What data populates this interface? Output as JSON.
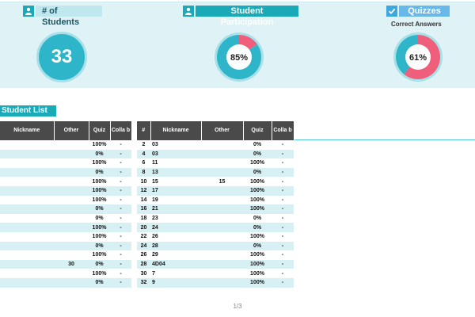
{
  "stats": {
    "students": {
      "title": "# of Students",
      "value": "33",
      "icon": "user-icon"
    },
    "participation": {
      "title": "Student Participation",
      "value": "85%",
      "percent": 85,
      "icon": "user-icon"
    },
    "quizzes": {
      "title": "Quizzes",
      "subtitle": "Correct Answers",
      "value": "61%",
      "percent": 61,
      "icon": "check-icon"
    }
  },
  "colors": {
    "teal": "#2fb5c9",
    "pink": "#ef5f7c",
    "ring": "#a8e0e8"
  },
  "section_title": "Student List",
  "left_table": {
    "headers": [
      "Nickname",
      "Other",
      "Quiz",
      "Colla b"
    ],
    "rows": [
      [
        "",
        "",
        "100%",
        "-"
      ],
      [
        "",
        "",
        "0%",
        "-"
      ],
      [
        "",
        "",
        "100%",
        "-"
      ],
      [
        "",
        "",
        "0%",
        "-"
      ],
      [
        "",
        "",
        "100%",
        "-"
      ],
      [
        "",
        "",
        "100%",
        "-"
      ],
      [
        "",
        "",
        "100%",
        "-"
      ],
      [
        "",
        "",
        "0%",
        "-"
      ],
      [
        "",
        "",
        "0%",
        "-"
      ],
      [
        "",
        "",
        "100%",
        "-"
      ],
      [
        "",
        "",
        "100%",
        "-"
      ],
      [
        "",
        "",
        "0%",
        "-"
      ],
      [
        "",
        "",
        "100%",
        "-"
      ],
      [
        "",
        "30",
        "0%",
        "-"
      ],
      [
        "",
        "",
        "100%",
        "-"
      ],
      [
        "",
        "",
        "0%",
        "-"
      ]
    ]
  },
  "right_table": {
    "headers": [
      "#",
      "Nickname",
      "Other",
      "Quiz",
      "Colla b"
    ],
    "rows": [
      [
        "2",
        "03",
        "",
        "0%",
        "-"
      ],
      [
        "4",
        "03",
        "",
        "0%",
        "-"
      ],
      [
        "6",
        "11",
        "",
        "100%",
        "-"
      ],
      [
        "8",
        "13",
        "",
        "0%",
        "-"
      ],
      [
        "10",
        "15",
        "15",
        "100%",
        "-"
      ],
      [
        "12",
        "17",
        "",
        "100%",
        "-"
      ],
      [
        "14",
        "19",
        "",
        "100%",
        "-"
      ],
      [
        "16",
        "21",
        "",
        "100%",
        "-"
      ],
      [
        "18",
        "23",
        "",
        "0%",
        "-"
      ],
      [
        "20",
        "24",
        "",
        "0%",
        "-"
      ],
      [
        "22",
        "26",
        "",
        "100%",
        "-"
      ],
      [
        "24",
        "28",
        "",
        "0%",
        "-"
      ],
      [
        "26",
        "29",
        "",
        "100%",
        "-"
      ],
      [
        "28",
        "4D04",
        "",
        "100%",
        "-"
      ],
      [
        "30",
        "7",
        "",
        "100%",
        "-"
      ],
      [
        "32",
        "9",
        "",
        "100%",
        "-"
      ]
    ]
  },
  "pager": "1/3"
}
